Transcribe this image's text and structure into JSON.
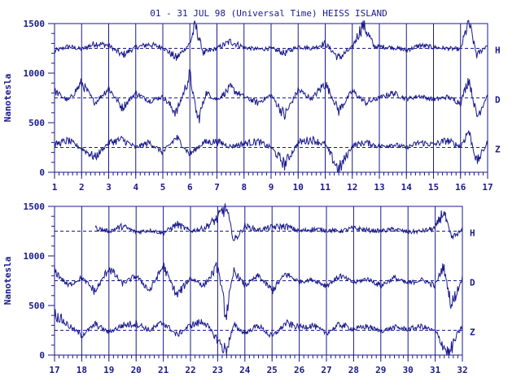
{
  "title": "01 - 31 JUL 98 (Universal Time) HEISS ISLAND",
  "colors": {
    "ink": "#1a1a8c",
    "background": "#ffffff"
  },
  "chart_data": [
    {
      "type": "line",
      "ylabel": "Nanotesla",
      "ylim": [
        0,
        1500
      ],
      "yticks": [
        "0",
        "500",
        "1000",
        "1500"
      ],
      "xlim": [
        1,
        17
      ],
      "xticks": [
        "1",
        "2",
        "3",
        "4",
        "5",
        "6",
        "7",
        "8",
        "9",
        "10",
        "11",
        "12",
        "13",
        "14",
        "15",
        "16",
        "17"
      ],
      "baselines": [
        1250,
        750,
        250
      ],
      "grid": "vertical lines at each day",
      "series": [
        {
          "name": "H",
          "base": 1250,
          "points": [
            [
              1,
              1220
            ],
            [
              1.5,
              1270
            ],
            [
              2,
              1240
            ],
            [
              2.5,
              1300
            ],
            [
              3,
              1280
            ],
            [
              3.5,
              1180
            ],
            [
              4,
              1260
            ],
            [
              4.5,
              1290
            ],
            [
              5,
              1260
            ],
            [
              5.5,
              1150
            ],
            [
              6,
              1300
            ],
            [
              6.2,
              1480
            ],
            [
              6.5,
              1200
            ],
            [
              7,
              1250
            ],
            [
              7.5,
              1320
            ],
            [
              8,
              1260
            ],
            [
              8.5,
              1240
            ],
            [
              9,
              1250
            ],
            [
              9.5,
              1200
            ],
            [
              10,
              1270
            ],
            [
              10.5,
              1250
            ],
            [
              11,
              1300
            ],
            [
              11.5,
              1150
            ],
            [
              12,
              1260
            ],
            [
              12.4,
              1500
            ],
            [
              12.8,
              1270
            ],
            [
              13.5,
              1260
            ],
            [
              14,
              1230
            ],
            [
              14.5,
              1280
            ],
            [
              15,
              1260
            ],
            [
              15.5,
              1250
            ],
            [
              16,
              1240
            ],
            [
              16.3,
              1520
            ],
            [
              16.6,
              1180
            ],
            [
              17,
              1290
            ]
          ]
        },
        {
          "name": "D",
          "base": 750,
          "points": [
            [
              1,
              820
            ],
            [
              1.5,
              720
            ],
            [
              2,
              900
            ],
            [
              2.5,
              700
            ],
            [
              3,
              850
            ],
            [
              3.5,
              650
            ],
            [
              4,
              800
            ],
            [
              4.5,
              720
            ],
            [
              5,
              760
            ],
            [
              5.5,
              600
            ],
            [
              6,
              980
            ],
            [
              6.3,
              520
            ],
            [
              6.6,
              800
            ],
            [
              7,
              730
            ],
            [
              7.5,
              850
            ],
            [
              8,
              760
            ],
            [
              8.5,
              700
            ],
            [
              9,
              780
            ],
            [
              9.5,
              570
            ],
            [
              10,
              830
            ],
            [
              10.5,
              740
            ],
            [
              11,
              900
            ],
            [
              11.5,
              620
            ],
            [
              12,
              820
            ],
            [
              12.5,
              700
            ],
            [
              13,
              750
            ],
            [
              13.5,
              800
            ],
            [
              14,
              740
            ],
            [
              14.5,
              770
            ],
            [
              15,
              730
            ],
            [
              15.5,
              760
            ],
            [
              16,
              700
            ],
            [
              16.3,
              950
            ],
            [
              16.6,
              560
            ],
            [
              17,
              780
            ]
          ]
        },
        {
          "name": "Z",
          "base": 250,
          "points": [
            [
              1,
              280
            ],
            [
              1.5,
              320
            ],
            [
              2,
              240
            ],
            [
              2.5,
              150
            ],
            [
              3,
              300
            ],
            [
              3.5,
              330
            ],
            [
              4,
              250
            ],
            [
              4.5,
              300
            ],
            [
              5,
              200
            ],
            [
              5.5,
              350
            ],
            [
              6,
              180
            ],
            [
              6.5,
              300
            ],
            [
              7,
              310
            ],
            [
              7.5,
              260
            ],
            [
              8,
              290
            ],
            [
              8.5,
              310
            ],
            [
              9,
              250
            ],
            [
              9.5,
              80
            ],
            [
              10,
              300
            ],
            [
              10.5,
              330
            ],
            [
              11,
              280
            ],
            [
              11.5,
              20
            ],
            [
              12,
              270
            ],
            [
              12.5,
              300
            ],
            [
              13,
              260
            ],
            [
              13.5,
              280
            ],
            [
              14,
              250
            ],
            [
              14.5,
              300
            ],
            [
              15,
              280
            ],
            [
              15.5,
              320
            ],
            [
              16,
              260
            ],
            [
              16.3,
              420
            ],
            [
              16.6,
              100
            ],
            [
              17,
              300
            ]
          ]
        }
      ]
    },
    {
      "type": "line",
      "ylabel": "Nanotesla",
      "ylim": [
        0,
        1500
      ],
      "yticks": [
        "0",
        "500",
        "1000",
        "1500"
      ],
      "xlim": [
        17,
        32
      ],
      "xticks": [
        "17",
        "18",
        "19",
        "20",
        "21",
        "22",
        "23",
        "24",
        "25",
        "26",
        "27",
        "28",
        "29",
        "30",
        "31",
        "32"
      ],
      "baselines": [
        1250,
        750,
        250
      ],
      "grid": "vertical lines at each day",
      "series": [
        {
          "name": "H",
          "base": 1250,
          "points": [
            [
              18.5,
              1280
            ],
            [
              19,
              1250
            ],
            [
              19.5,
              1300
            ],
            [
              20,
              1240
            ],
            [
              20.5,
              1260
            ],
            [
              21,
              1230
            ],
            [
              21.5,
              1320
            ],
            [
              22,
              1250
            ],
            [
              22.5,
              1280
            ],
            [
              23,
              1380
            ],
            [
              23.3,
              1500
            ],
            [
              23.6,
              1150
            ],
            [
              24,
              1300
            ],
            [
              24.5,
              1260
            ],
            [
              25,
              1290
            ],
            [
              25.5,
              1300
            ],
            [
              26,
              1250
            ],
            [
              26.5,
              1270
            ],
            [
              27,
              1260
            ],
            [
              27.5,
              1250
            ],
            [
              28,
              1280
            ],
            [
              28.5,
              1260
            ],
            [
              29,
              1250
            ],
            [
              29.5,
              1270
            ],
            [
              30,
              1240
            ],
            [
              30.5,
              1250
            ],
            [
              31,
              1280
            ],
            [
              31.3,
              1450
            ],
            [
              31.6,
              1180
            ],
            [
              32,
              1260
            ]
          ]
        },
        {
          "name": "D",
          "base": 750,
          "points": [
            [
              17,
              850
            ],
            [
              17.5,
              700
            ],
            [
              18,
              780
            ],
            [
              18.5,
              640
            ],
            [
              19,
              880
            ],
            [
              19.5,
              720
            ],
            [
              20,
              800
            ],
            [
              20.5,
              650
            ],
            [
              21,
              900
            ],
            [
              21.5,
              600
            ],
            [
              22,
              780
            ],
            [
              22.5,
              700
            ],
            [
              23,
              900
            ],
            [
              23.3,
              400
            ],
            [
              23.6,
              850
            ],
            [
              24,
              700
            ],
            [
              24.5,
              800
            ],
            [
              25,
              650
            ],
            [
              25.5,
              820
            ],
            [
              26,
              740
            ],
            [
              26.5,
              760
            ],
            [
              27,
              700
            ],
            [
              27.5,
              800
            ],
            [
              28,
              730
            ],
            [
              28.5,
              770
            ],
            [
              29,
              700
            ],
            [
              29.5,
              780
            ],
            [
              30,
              720
            ],
            [
              30.5,
              760
            ],
            [
              31,
              700
            ],
            [
              31.3,
              900
            ],
            [
              31.6,
              500
            ],
            [
              32,
              780
            ]
          ]
        },
        {
          "name": "Z",
          "base": 250,
          "points": [
            [
              17,
              420
            ],
            [
              17.5,
              300
            ],
            [
              18,
              200
            ],
            [
              18.5,
              310
            ],
            [
              19,
              230
            ],
            [
              19.5,
              300
            ],
            [
              20,
              320
            ],
            [
              20.5,
              250
            ],
            [
              21,
              330
            ],
            [
              21.5,
              200
            ],
            [
              22,
              300
            ],
            [
              22.5,
              340
            ],
            [
              23,
              150
            ],
            [
              23.3,
              40
            ],
            [
              23.6,
              300
            ],
            [
              24,
              220
            ],
            [
              24.5,
              300
            ],
            [
              25,
              180
            ],
            [
              25.5,
              320
            ],
            [
              26,
              280
            ],
            [
              26.5,
              300
            ],
            [
              27,
              220
            ],
            [
              27.5,
              310
            ],
            [
              28,
              260
            ],
            [
              28.5,
              290
            ],
            [
              29,
              240
            ],
            [
              29.5,
              280
            ],
            [
              30,
              260
            ],
            [
              30.5,
              290
            ],
            [
              31,
              240
            ],
            [
              31.5,
              0
            ],
            [
              31.8,
              200
            ],
            [
              32,
              290
            ]
          ]
        }
      ]
    }
  ]
}
